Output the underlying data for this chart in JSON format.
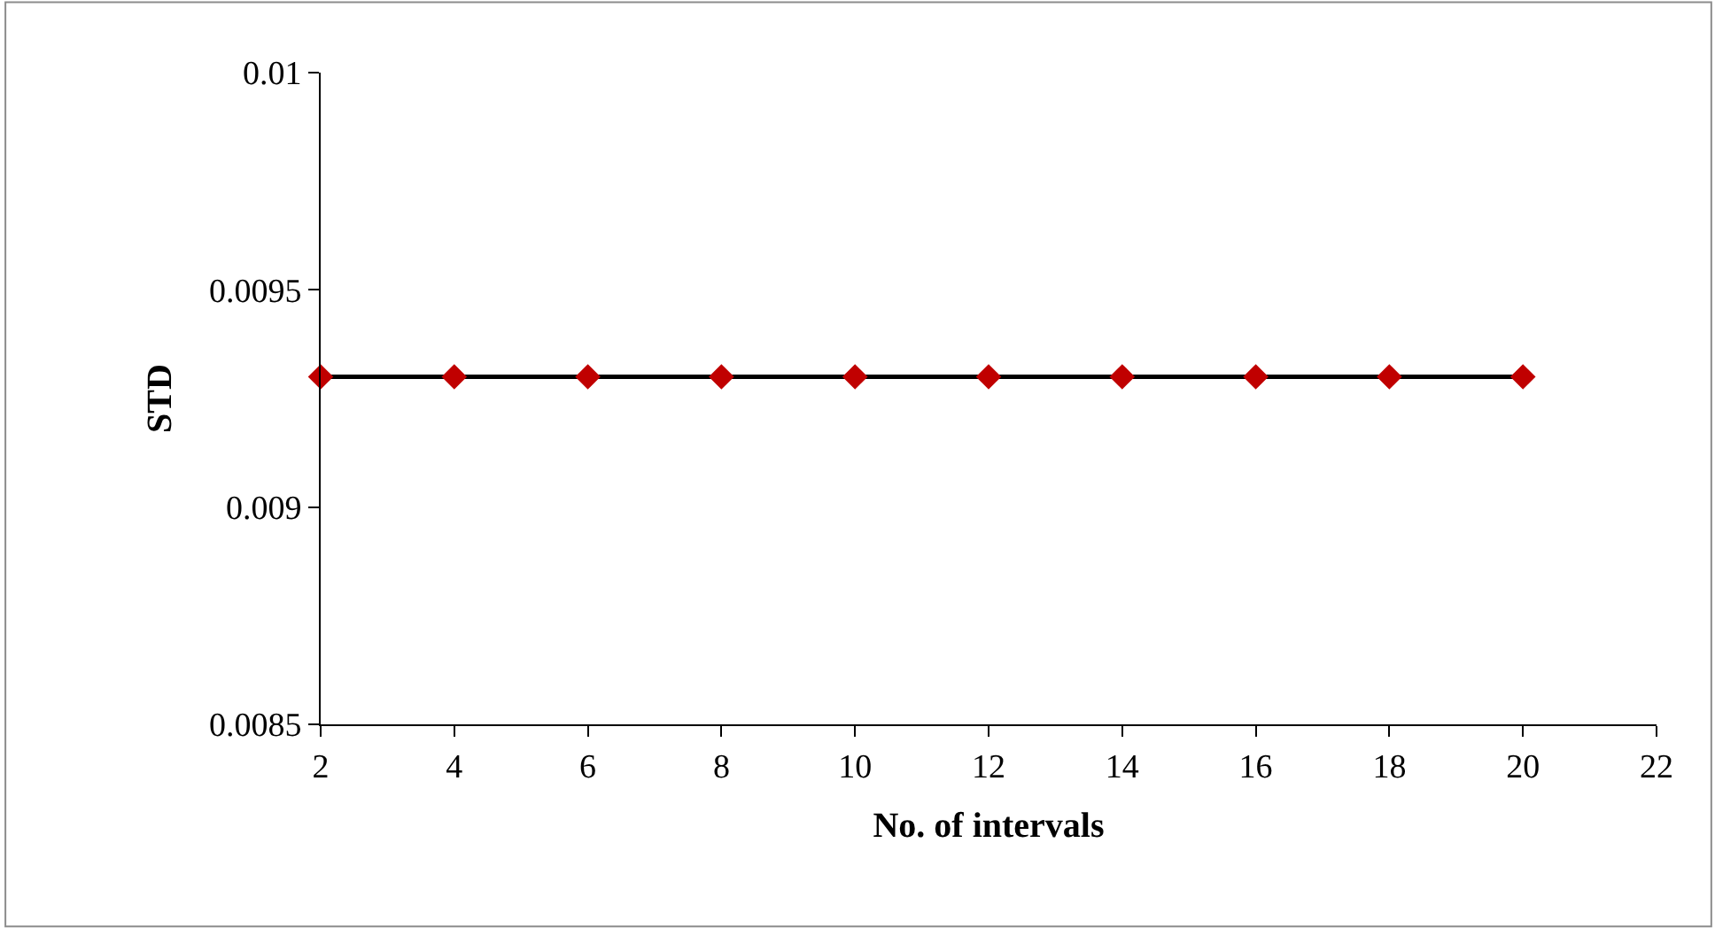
{
  "chart_data": {
    "type": "line",
    "xlabel": "No. of intervals",
    "ylabel": "STD",
    "x": [
      2,
      4,
      6,
      8,
      10,
      12,
      14,
      16,
      18,
      20
    ],
    "series": [
      {
        "color": "#c00000",
        "values": [
          0.0093,
          0.0093,
          0.0093,
          0.0093,
          0.0093,
          0.0093,
          0.0093,
          0.0093,
          0.0093,
          0.0093
        ]
      }
    ],
    "xlim": [
      2,
      22
    ],
    "xticks": [
      2,
      4,
      6,
      8,
      10,
      12,
      14,
      16,
      18,
      20,
      22
    ],
    "ylim": [
      0.0085,
      0.01
    ],
    "yticks": [
      0.0085,
      0.009,
      0.0095,
      0.01
    ],
    "marker": "diamond",
    "line_style": "solid"
  }
}
